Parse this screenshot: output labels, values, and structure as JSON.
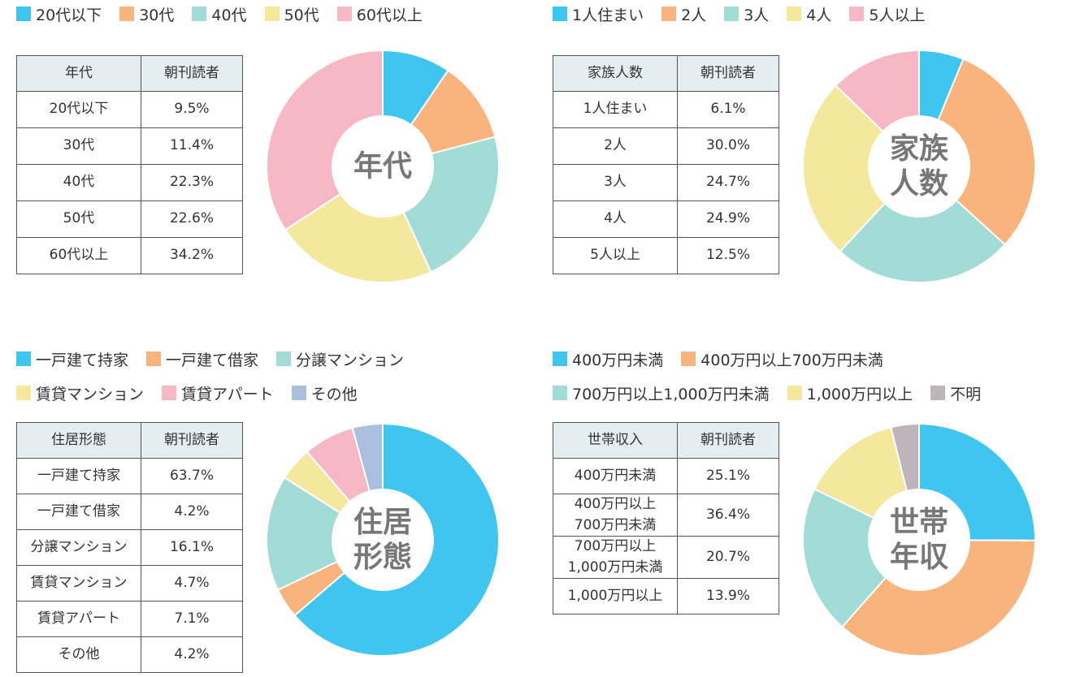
{
  "chart_data": [
    {
      "type": "pie",
      "title": "年代",
      "table_header": [
        "年代",
        "朝刊読者"
      ],
      "categories": [
        "20代以下",
        "30代",
        "40代",
        "50代",
        "60代以上"
      ],
      "values": [
        9.5,
        11.4,
        22.3,
        22.6,
        34.2
      ],
      "value_labels": [
        "9.5%",
        "11.4%",
        "22.3%",
        "22.6%",
        "34.2%"
      ],
      "colors": [
        "#3ec6f0",
        "#f8b47c",
        "#a2dcd6",
        "#f3e89c",
        "#f6b8c4"
      ]
    },
    {
      "type": "pie",
      "title": "家族人数",
      "table_header": [
        "家族人数",
        "朝刊読者"
      ],
      "categories": [
        "1人住まい",
        "2人",
        "3人",
        "4人",
        "5人以上"
      ],
      "values": [
        6.1,
        30.0,
        24.7,
        24.9,
        12.5
      ],
      "value_labels": [
        "6.1%",
        "30.0%",
        "24.7%",
        "24.9%",
        "12.5%"
      ],
      "colors": [
        "#3ec6f0",
        "#f8b47c",
        "#a2dcd6",
        "#f3e89c",
        "#f6b8c4"
      ]
    },
    {
      "type": "pie",
      "title": "住居形態",
      "table_header": [
        "住居形態",
        "朝刊読者"
      ],
      "categories": [
        "一戸建て持家",
        "一戸建て借家",
        "分譲マンション",
        "賃貸マンション",
        "賃貸アパート",
        "その他"
      ],
      "values": [
        63.7,
        4.2,
        16.1,
        4.7,
        7.1,
        4.2
      ],
      "value_labels": [
        "63.7%",
        "4.2%",
        "16.1%",
        "4.7%",
        "7.1%",
        "4.2%"
      ],
      "colors": [
        "#3ec6f0",
        "#f8b47c",
        "#a2dcd6",
        "#f3e89c",
        "#f6b8c4",
        "#a9bfdd"
      ]
    },
    {
      "type": "pie",
      "title": "世帯年収",
      "table_header": [
        "世帯収入",
        "朝刊読者"
      ],
      "categories": [
        "400万円未満",
        "400万円以上700万円未満",
        "700万円以上1,000万円未満",
        "1,000万円以上",
        "不明"
      ],
      "table_labels": [
        "400万円未満",
        "400万円以上\n700万円未満",
        "700万円以上\n1,000万円未満",
        "1,000万円以上"
      ],
      "values": [
        25.1,
        36.4,
        20.7,
        13.9,
        3.9
      ],
      "value_labels": [
        "25.1%",
        "36.4%",
        "20.7%",
        "13.9%",
        null
      ],
      "colors": [
        "#3ec6f0",
        "#f8b47c",
        "#a2dcd6",
        "#f3e89c",
        "#c0b4bb"
      ]
    }
  ]
}
